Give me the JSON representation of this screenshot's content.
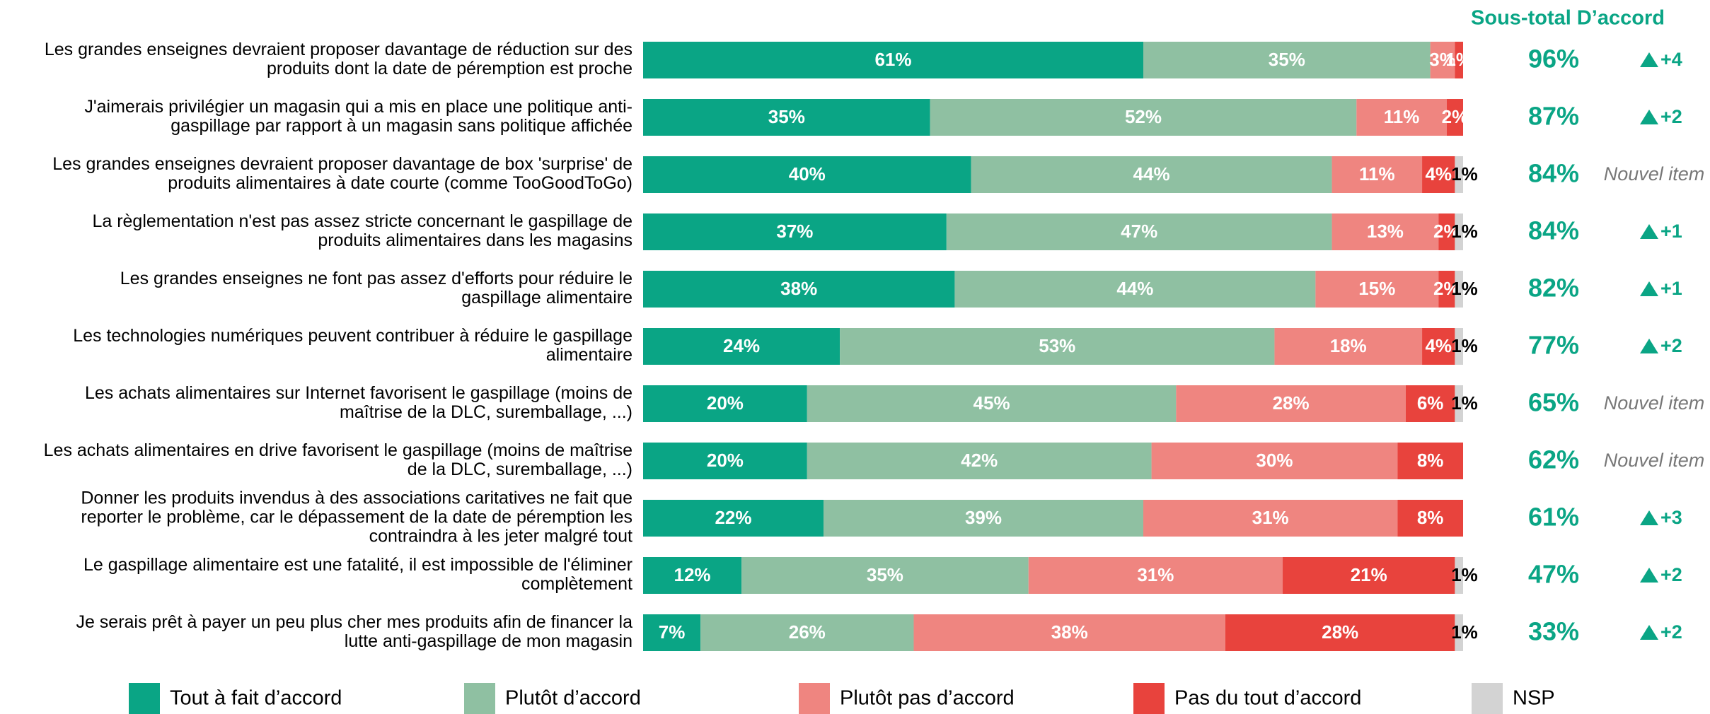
{
  "chart_data": {
    "type": "stacked-bar-horizontal",
    "subtotal_title": "Sous-total D’accord",
    "categories": [
      [
        "Les grandes enseignes devraient proposer davantage de réduction sur des",
        "produits dont la date de péremption est proche"
      ],
      [
        "J'aimerais privilégier un magasin qui a mis en place une politique anti-",
        "gaspillage par rapport à un magasin sans politique affichée"
      ],
      [
        "Les grandes enseignes devraient proposer davantage de box 'surprise' de",
        "produits alimentaires à date courte (comme TooGoodToGo)"
      ],
      [
        "La règlementation n'est pas assez stricte concernant le gaspillage de",
        "produits alimentaires dans les magasins"
      ],
      [
        "Les grandes enseignes ne font pas assez d'efforts pour réduire le",
        "gaspillage alimentaire"
      ],
      [
        "Les technologies numériques peuvent contribuer à réduire le gaspillage",
        "alimentaire"
      ],
      [
        "Les achats alimentaires sur Internet favorisent le gaspillage (moins de",
        "maîtrise de la DLC, suremballage, ...)"
      ],
      [
        "Les achats alimentaires en drive favorisent le gaspillage (moins de maîtrise",
        "de la DLC, suremballage, ...)"
      ],
      [
        "Donner les produits invendus à des associations caritatives ne fait que",
        "reporter le problème, car le dépassement de la date de péremption les",
        "contraindra à les jeter malgré tout"
      ],
      [
        "Le gaspillage alimentaire est une fatalité, il est impossible de l'éliminer",
        "complètement"
      ],
      [
        "Je serais prêt à payer un peu plus cher mes produits afin de financer la",
        "lutte anti-gaspillage de mon magasin"
      ]
    ],
    "xlim": [
      0,
      100
    ],
    "series": [
      {
        "name": "Tout à fait d’accord",
        "color": "#0aa585",
        "values": [
          61,
          35,
          40,
          37,
          38,
          24,
          20,
          20,
          22,
          12,
          7
        ],
        "value_labels": [
          "61%",
          "35%",
          "40%",
          "37%",
          "38%",
          "24%",
          "20%",
          "20%",
          "22%",
          "12%",
          "7%"
        ]
      },
      {
        "name": "Plutôt d’accord",
        "color": "#8fc0a2",
        "values": [
          35,
          52,
          44,
          47,
          44,
          53,
          45,
          42,
          39,
          35,
          26
        ],
        "value_labels": [
          "35%",
          "52%",
          "44%",
          "47%",
          "44%",
          "53%",
          "45%",
          "42%",
          "39%",
          "35%",
          "26%"
        ]
      },
      {
        "name": "Plutôt pas d’accord",
        "color": "#ef8580",
        "values": [
          3,
          11,
          11,
          13,
          15,
          18,
          28,
          30,
          31,
          31,
          38
        ],
        "value_labels": [
          "3%",
          "11%",
          "11%",
          "13%",
          "15%",
          "18%",
          "28%",
          "30%",
          "31%",
          "31%",
          "38%"
        ]
      },
      {
        "name": "Pas du tout d’accord",
        "color": "#e8433d",
        "values": [
          1,
          2,
          4,
          2,
          2,
          4,
          6,
          8,
          8,
          21,
          28
        ],
        "value_labels": [
          "1%",
          "2%",
          "4%",
          "2%",
          "2%",
          "4%",
          "6%",
          "8%",
          "8%",
          "21%",
          "28%"
        ]
      },
      {
        "name": "NSP",
        "color": "#d3d3d3",
        "values": [
          0,
          0,
          1,
          1,
          1,
          1,
          1,
          0,
          0,
          1,
          1
        ],
        "value_labels": [
          null,
          null,
          "1%",
          "1%",
          "1%",
          "1%",
          "1%",
          null,
          null,
          "1%",
          "1%"
        ]
      }
    ],
    "subtotal": [
      96,
      87,
      84,
      84,
      82,
      77,
      65,
      62,
      61,
      47,
      33
    ],
    "subtotal_labels": [
      "96%",
      "87%",
      "84%",
      "84%",
      "82%",
      "77%",
      "65%",
      "62%",
      "61%",
      "47%",
      "33%"
    ],
    "evolution": [
      "+4",
      "+2",
      "Nouvel item",
      "+1",
      "+1",
      "+2",
      "Nouvel item",
      "Nouvel item",
      "+3",
      "+2",
      "+2"
    ]
  }
}
